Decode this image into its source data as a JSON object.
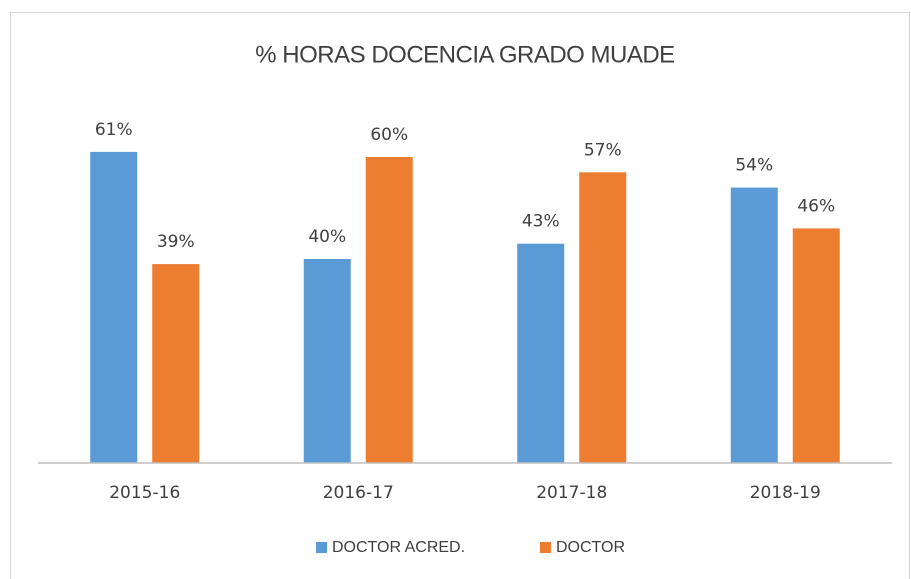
{
  "chart_data": {
    "type": "bar",
    "title": "% HORAS DOCENCIA GRADO MUADE",
    "categories": [
      "2015-16",
      "2016-17",
      "2017-18",
      "2018-19"
    ],
    "series": [
      {
        "name": "DOCTOR ACRED.",
        "color": "#5b9bd5",
        "values": [
          61,
          40,
          43,
          54
        ],
        "value_labels": [
          "61%",
          "40%",
          "43%",
          "54%"
        ]
      },
      {
        "name": "DOCTOR",
        "color": "#ed7d31",
        "values": [
          39,
          60,
          57,
          46
        ],
        "value_labels": [
          "39%",
          "60%",
          "57%",
          "46%"
        ]
      }
    ],
    "ylim": [
      0,
      70
    ],
    "legend": "bottom"
  }
}
